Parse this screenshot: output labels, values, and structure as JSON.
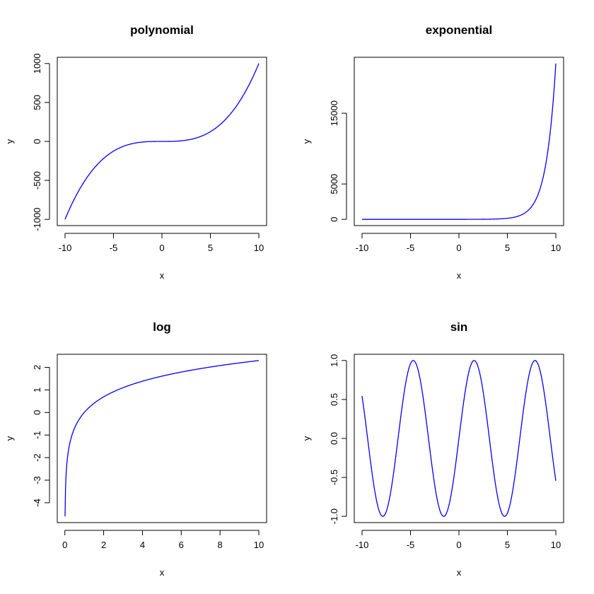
{
  "chart_data": [
    {
      "type": "line",
      "title": "polynomial",
      "xlabel": "x",
      "ylabel": "y",
      "function": "cube",
      "xlim": [
        -10,
        10
      ],
      "ylim": [
        -1000,
        1000
      ],
      "x_ticks": [
        -10,
        -5,
        0,
        5,
        10
      ],
      "x_tick_labels": [
        "-10",
        "-5",
        "0",
        "5",
        "10"
      ],
      "y_ticks": [
        -1000,
        -500,
        0,
        500,
        1000
      ],
      "y_tick_labels": [
        "-1000",
        "-500",
        "0",
        "500",
        "1000"
      ],
      "series": [
        {
          "x": [
            -10,
            -8,
            -6,
            -4,
            -2,
            0,
            2,
            4,
            6,
            8,
            10
          ],
          "y": [
            -1000,
            -512,
            -216,
            -64,
            -8,
            0,
            8,
            64,
            216,
            512,
            1000
          ]
        }
      ],
      "color": "#0000ff"
    },
    {
      "type": "line",
      "title": "exponential",
      "xlabel": "x",
      "ylabel": "y",
      "function": "exp",
      "xlim": [
        -10,
        10
      ],
      "ylim": [
        0,
        22026
      ],
      "x_ticks": [
        -10,
        -5,
        0,
        5,
        10
      ],
      "x_tick_labels": [
        "-10",
        "-5",
        "0",
        "5",
        "10"
      ],
      "y_ticks": [
        0,
        5000,
        15000
      ],
      "y_tick_labels": [
        "0",
        "5000",
        "15000"
      ],
      "series": [
        {
          "x": [
            -10,
            -5,
            0,
            5,
            6,
            7,
            8,
            9,
            10
          ],
          "y": [
            0,
            0.01,
            1,
            148,
            403,
            1097,
            2981,
            8103,
            22026
          ]
        }
      ],
      "color": "#0000ff"
    },
    {
      "type": "line",
      "title": "log",
      "xlabel": "x",
      "ylabel": "y",
      "function": "log",
      "xlim": [
        0.01,
        10
      ],
      "ylim": [
        -4.6,
        2.3
      ],
      "x_ticks": [
        0,
        2,
        4,
        6,
        8,
        10
      ],
      "x_tick_labels": [
        "0",
        "2",
        "4",
        "6",
        "8",
        "10"
      ],
      "y_ticks": [
        -4,
        -3,
        -2,
        -1,
        0,
        1,
        2
      ],
      "y_tick_labels": [
        "-4",
        "-3",
        "-2",
        "-1",
        "0",
        "1",
        "2"
      ],
      "series": [
        {
          "x": [
            0.01,
            0.1,
            0.5,
            1,
            2,
            4,
            6,
            8,
            10
          ],
          "y": [
            -4.6,
            -2.3,
            -0.69,
            0,
            0.69,
            1.39,
            1.79,
            2.08,
            2.3
          ]
        }
      ],
      "color": "#0000ff"
    },
    {
      "type": "line",
      "title": "sin",
      "xlabel": "x",
      "ylabel": "y",
      "function": "sin",
      "xlim": [
        -10,
        10
      ],
      "ylim": [
        -1,
        1
      ],
      "x_ticks": [
        -10,
        -5,
        0,
        5,
        10
      ],
      "x_tick_labels": [
        "-10",
        "-5",
        "0",
        "5",
        "10"
      ],
      "y_ticks": [
        -1,
        -0.5,
        0,
        0.5,
        1
      ],
      "y_tick_labels": [
        "-1.0",
        "-0.5",
        "0.0",
        "0.5",
        "1.0"
      ],
      "series": [
        {
          "x": [
            -10,
            -7.85,
            -4.71,
            -1.57,
            0,
            1.57,
            4.71,
            7.85,
            10
          ],
          "y": [
            0.54,
            -1,
            1,
            -1,
            0,
            1,
            -1,
            1,
            -0.54
          ]
        }
      ],
      "color": "#0000ff"
    }
  ]
}
